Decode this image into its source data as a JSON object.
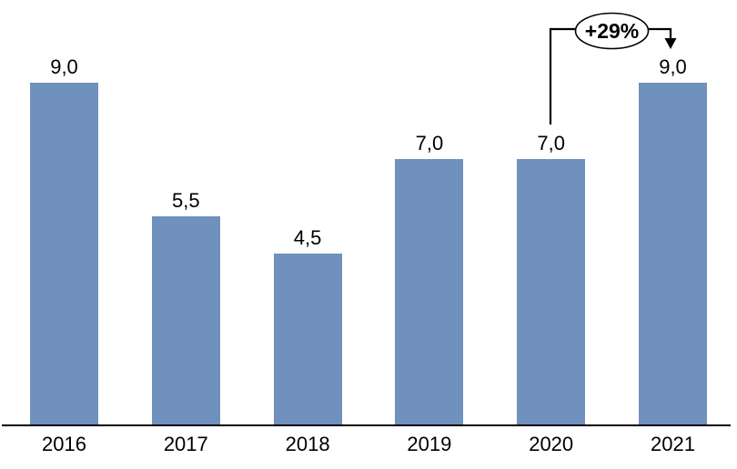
{
  "chart_data": {
    "type": "bar",
    "title": "",
    "xlabel": "",
    "ylabel": "",
    "categories": [
      "2016",
      "2017",
      "2018",
      "2019",
      "2020",
      "2021"
    ],
    "values": [
      9.0,
      5.5,
      4.5,
      7.0,
      7.0,
      9.0
    ],
    "value_labels": [
      "9,0",
      "5,5",
      "4,5",
      "7,0",
      "7,0",
      "9,0"
    ],
    "ylim": [
      0,
      9
    ],
    "grid": false,
    "legend": false,
    "bar_color": "#7090BD",
    "axis_color": "#000000",
    "annotation": {
      "label": "+29%",
      "from_category": "2020",
      "to_category": "2021"
    }
  }
}
